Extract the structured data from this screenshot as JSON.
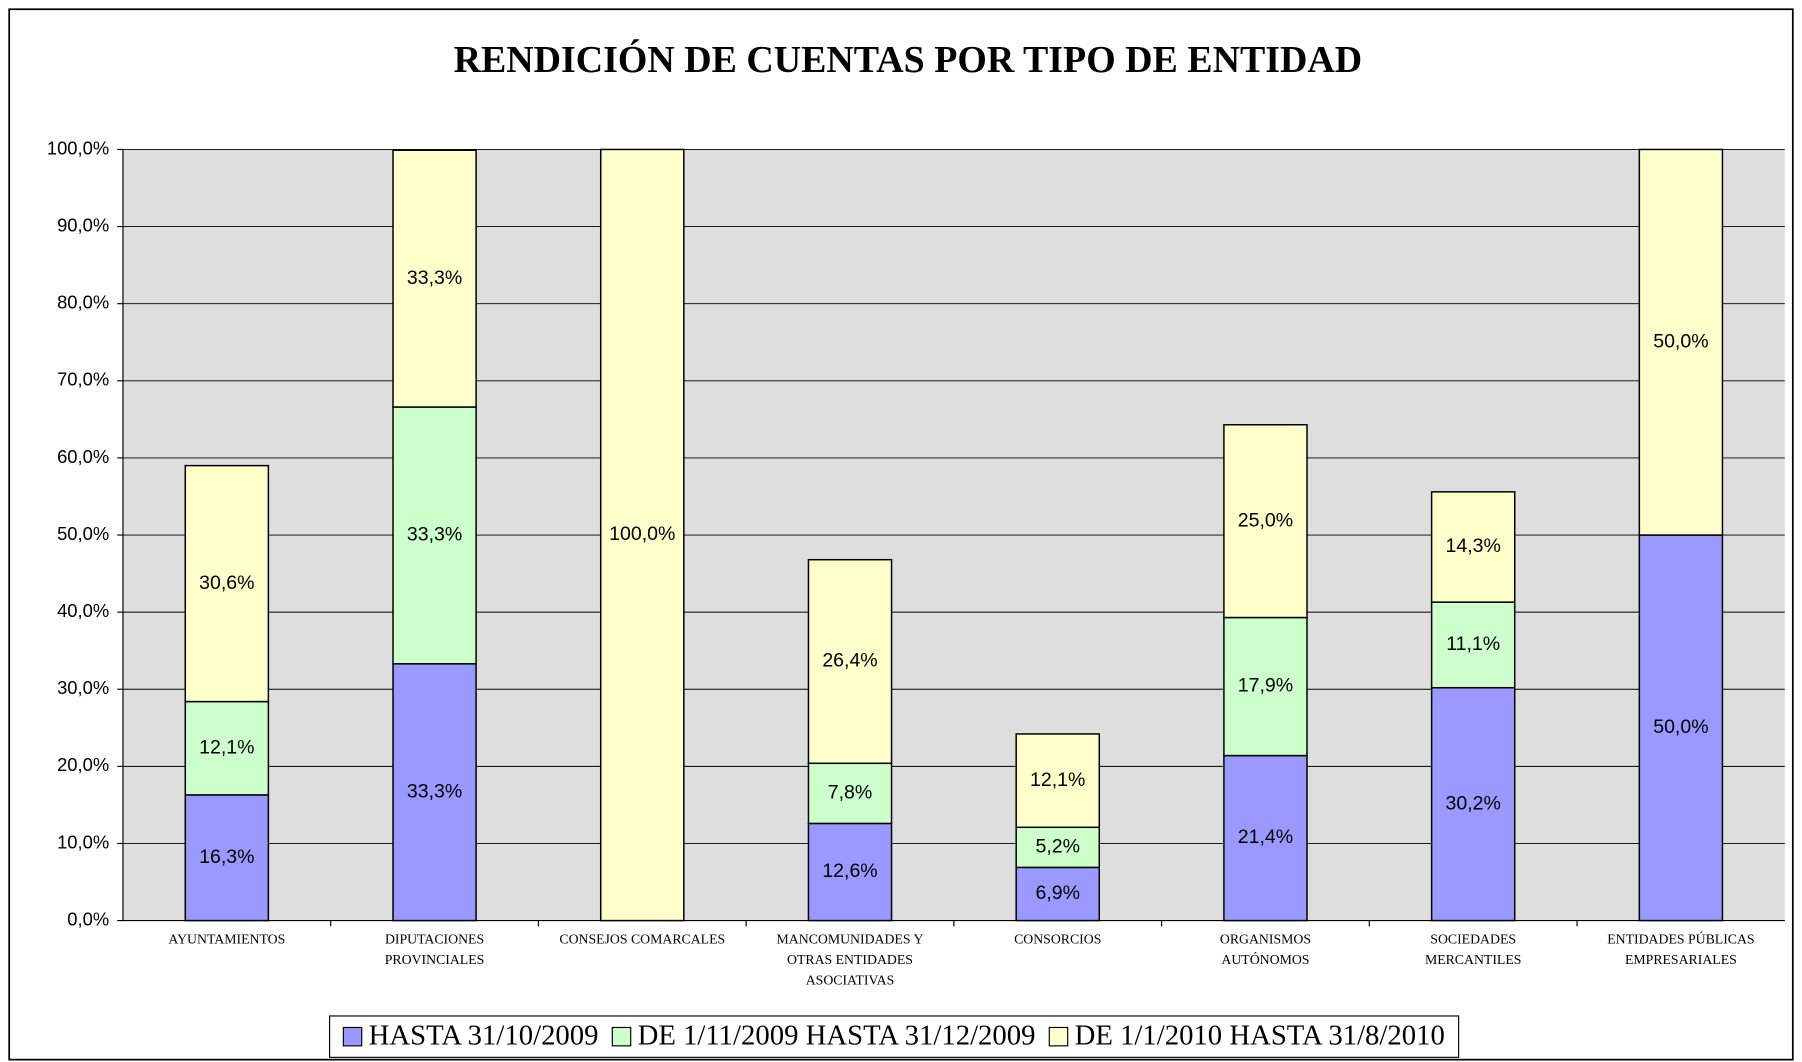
{
  "chart_data": {
    "type": "stacked-bar",
    "title": "RENDICIÓN DE CUENTAS POR TIPO DE ENTIDAD",
    "categories": [
      [
        "AYUNTAMIENTOS"
      ],
      [
        "DIPUTACIONES",
        "PROVINCIALES"
      ],
      [
        "CONSEJOS COMARCALES"
      ],
      [
        "MANCOMUNIDADES Y",
        "OTRAS ENTIDADES",
        "ASOCIATIVAS"
      ],
      [
        "CONSORCIOS"
      ],
      [
        "ORGANISMOS",
        "AUTÓNOMOS"
      ],
      [
        "SOCIEDADES",
        "MERCANTILES"
      ],
      [
        "ENTIDADES PÚBLICAS",
        "EMPRESARIALES"
      ]
    ],
    "series": [
      {
        "name": "HASTA 31/10/2009",
        "color": "#9999ff",
        "values": [
          16.3,
          33.3,
          null,
          12.6,
          6.9,
          21.4,
          30.2,
          50.0
        ],
        "value_labels": [
          "16,3%",
          "33,3%",
          null,
          "12,6%",
          "6,9%",
          "21,4%",
          "30,2%",
          "50,0%"
        ]
      },
      {
        "name": "DE 1/11/2009 HASTA 31/12/2009",
        "color": "#ccffcc",
        "values": [
          12.1,
          33.3,
          null,
          7.8,
          5.2,
          17.9,
          11.1,
          null
        ],
        "value_labels": [
          "12,1%",
          "33,3%",
          null,
          "7,8%",
          "5,2%",
          "17,9%",
          "11,1%",
          null
        ]
      },
      {
        "name": "DE 1/1/2010 HASTA 31/8/2010",
        "color": "#ffffcc",
        "values": [
          30.6,
          33.3,
          100.0,
          26.4,
          12.1,
          25.0,
          14.3,
          50.0
        ],
        "value_labels": [
          "30,6%",
          "33,3%",
          "100,0%",
          "26,4%",
          "12,1%",
          "25,0%",
          "14,3%",
          "50,0%"
        ]
      }
    ],
    "ylim": [
      0,
      100
    ],
    "yticks": [
      {
        "value": 0,
        "label": "0,0%"
      },
      {
        "value": 10,
        "label": "10,0%"
      },
      {
        "value": 20,
        "label": "20,0%"
      },
      {
        "value": 30,
        "label": "30,0%"
      },
      {
        "value": 40,
        "label": "40,0%"
      },
      {
        "value": 50,
        "label": "50,0%"
      },
      {
        "value": 60,
        "label": "60,0%"
      },
      {
        "value": 70,
        "label": "70,0%"
      },
      {
        "value": 80,
        "label": "80,0%"
      },
      {
        "value": 90,
        "label": "90,0%"
      },
      {
        "value": 100,
        "label": "100,0%"
      }
    ],
    "grid": true,
    "legend": "bottom"
  }
}
